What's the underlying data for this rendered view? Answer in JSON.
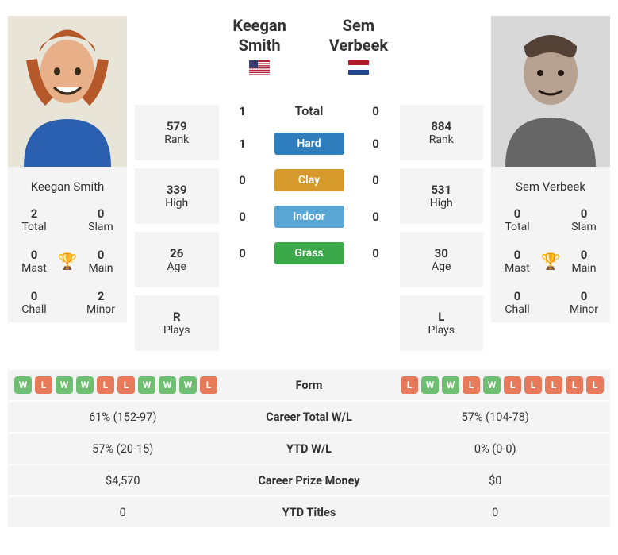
{
  "colors": {
    "win": "#6fbf73",
    "loss": "#e77a5a",
    "hard": "#2f7fbf",
    "clay": "#d59a2b",
    "indoor": "#5aa7d6",
    "grass": "#3ba84a",
    "panel": "#f4f4f4",
    "trophy": "#3b82c4"
  },
  "p1": {
    "name": "Keegan Smith",
    "short_name": "Keegan Smith",
    "country": "US",
    "photo_tone": "color",
    "rank": "579",
    "high": "339",
    "age": "26",
    "plays": "R",
    "titles": {
      "total": "2",
      "slam": "0",
      "mast": "0",
      "main": "0",
      "chall": "0",
      "minor": "2"
    },
    "form": [
      "W",
      "L",
      "W",
      "W",
      "L",
      "L",
      "W",
      "W",
      "W",
      "L"
    ]
  },
  "p2": {
    "name": "Sem Verbeek",
    "short_name": "Sem Verbeek",
    "country": "NL",
    "photo_tone": "gray",
    "rank": "884",
    "high": "531",
    "age": "30",
    "plays": "L",
    "titles": {
      "total": "0",
      "slam": "0",
      "mast": "0",
      "main": "0",
      "chall": "0",
      "minor": "0"
    },
    "form": [
      "L",
      "W",
      "W",
      "L",
      "W",
      "L",
      "L",
      "L",
      "L",
      "L"
    ]
  },
  "h2h": {
    "total": {
      "label": "Total",
      "p1": "1",
      "p2": "0"
    },
    "surfaces": [
      {
        "label": "Hard",
        "color_key": "hard",
        "p1": "1",
        "p2": "0"
      },
      {
        "label": "Clay",
        "color_key": "clay",
        "p1": "0",
        "p2": "0"
      },
      {
        "label": "Indoor",
        "color_key": "indoor",
        "p1": "0",
        "p2": "0"
      },
      {
        "label": "Grass",
        "color_key": "grass",
        "p1": "0",
        "p2": "0"
      }
    ]
  },
  "rows": [
    {
      "label": "Form",
      "type": "form"
    },
    {
      "label": "Career Total W/L",
      "p1": "61% (152-97)",
      "p2": "57% (104-78)"
    },
    {
      "label": "YTD W/L",
      "p1": "57% (20-15)",
      "p2": "0% (0-0)"
    },
    {
      "label": "Career Prize Money",
      "p1": "$4,570",
      "p2": "$0"
    },
    {
      "label": "YTD Titles",
      "p1": "0",
      "p2": "0"
    }
  ],
  "labels": {
    "rank": "Rank",
    "high": "High",
    "age": "Age",
    "plays": "Plays",
    "total": "Total",
    "slam": "Slam",
    "mast": "Mast",
    "main": "Main",
    "chall": "Chall",
    "minor": "Minor"
  }
}
